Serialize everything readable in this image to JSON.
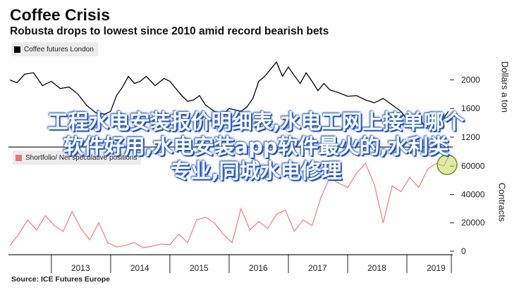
{
  "header": {
    "title": "Coffee Crisis",
    "subtitle": "Robusta drops to lowest since 2010 amid record bearish bets"
  },
  "source": "Source: ICE Futures Europe",
  "watermark": {
    "line1": "工程水电安装报价明细表,水电工网上接单哪个",
    "line2": "软件好用,水电安装app软件最火的,水利类",
    "line3": "专业,同城水电修理"
  },
  "colors": {
    "futures_line": "#000000",
    "positions_line": "#e8746f",
    "axis": "#222222",
    "highlight_circle": "#a6c93a",
    "watermark_shadow": "#2458c8"
  },
  "chart_data": [
    {
      "type": "line",
      "legend": [
        "Coffee futures London"
      ],
      "ylabel": "Dollars a ton",
      "yticks": [
        1200,
        1600,
        2000
      ],
      "ylim": [
        1100,
        2350
      ],
      "xlim": [
        2012.3,
        2019.75
      ],
      "series": [
        {
          "name": "Coffee futures London",
          "x": [
            2012.3,
            2012.42,
            2012.55,
            2012.7,
            2012.85,
            2013.0,
            2013.15,
            2013.3,
            2013.45,
            2013.6,
            2013.75,
            2013.9,
            2014.0,
            2014.1,
            2014.2,
            2014.3,
            2014.4,
            2014.5,
            2014.6,
            2014.75,
            2014.9,
            2015.0,
            2015.1,
            2015.2,
            2015.3,
            2015.4,
            2015.5,
            2015.6,
            2015.75,
            2015.9,
            2016.0,
            2016.1,
            2016.2,
            2016.3,
            2016.4,
            2016.5,
            2016.6,
            2016.7,
            2016.8,
            2016.9,
            2017.0,
            2017.1,
            2017.2,
            2017.3,
            2017.4,
            2017.5,
            2017.6,
            2017.7,
            2017.85,
            2018.0,
            2018.15,
            2018.3,
            2018.45,
            2018.6,
            2018.75,
            2018.9,
            2019.0,
            2019.1,
            2019.2,
            2019.3,
            2019.4,
            2019.5,
            2019.6,
            2019.7
          ],
          "y": [
            2000,
            1960,
            2080,
            2100,
            1920,
            1980,
            1880,
            1900,
            1800,
            1640,
            1540,
            1520,
            1560,
            1780,
            1900,
            2050,
            1950,
            1980,
            2050,
            1920,
            2020,
            1980,
            1880,
            1780,
            1700,
            1720,
            1780,
            1650,
            1560,
            1520,
            1600,
            1580,
            1560,
            1620,
            1740,
            1980,
            2050,
            2150,
            2250,
            2050,
            2180,
            2060,
            1950,
            2100,
            1980,
            1850,
            1950,
            1860,
            1820,
            1770,
            1780,
            1720,
            1680,
            1740,
            1650,
            1560,
            1450,
            1500,
            1460,
            1360,
            1400,
            1320,
            1440,
            1560
          ]
        }
      ]
    },
    {
      "type": "line",
      "legend": [
        "Shortfolio/ Net speculative positions"
      ],
      "ylabel": "Contracts",
      "yticks": [
        0,
        20000,
        40000,
        60000
      ],
      "ylim": [
        0,
        70000
      ],
      "xlim": [
        2012.3,
        2019.75
      ],
      "xticks": [
        "2013",
        "2014",
        "2015",
        "2016",
        "2017",
        "2018",
        "2019"
      ],
      "xtick_values": [
        2013,
        2014,
        2015,
        2016,
        2017,
        2018,
        2019
      ],
      "series": [
        {
          "name": "Shortfolio/ Net speculative positions",
          "x": [
            2012.3,
            2012.45,
            2012.6,
            2012.75,
            2012.9,
            2013.05,
            2013.2,
            2013.35,
            2013.5,
            2013.65,
            2013.8,
            2013.95,
            2014.1,
            2014.25,
            2014.4,
            2014.55,
            2014.7,
            2014.85,
            2015.0,
            2015.15,
            2015.3,
            2015.45,
            2015.6,
            2015.75,
            2015.9,
            2016.05,
            2016.2,
            2016.35,
            2016.5,
            2016.65,
            2016.8,
            2016.95,
            2017.1,
            2017.25,
            2017.4,
            2017.55,
            2017.7,
            2017.85,
            2018.0,
            2018.15,
            2018.3,
            2018.45,
            2018.6,
            2018.75,
            2018.9,
            2019.05,
            2019.2,
            2019.35,
            2019.5,
            2019.62,
            2019.72
          ],
          "y": [
            4000,
            12000,
            22000,
            15000,
            25000,
            18000,
            14000,
            28000,
            16000,
            8000,
            20000,
            6000,
            3000,
            4000,
            6000,
            2500,
            3500,
            5000,
            4500,
            12000,
            6000,
            22000,
            24000,
            20000,
            12000,
            6000,
            30000,
            15000,
            21000,
            16000,
            26000,
            29000,
            14000,
            22000,
            18000,
            38000,
            52000,
            48000,
            45000,
            55000,
            62000,
            47000,
            20000,
            46000,
            42000,
            52000,
            45000,
            58000,
            62000,
            60000,
            68000
          ]
        }
      ]
    }
  ]
}
